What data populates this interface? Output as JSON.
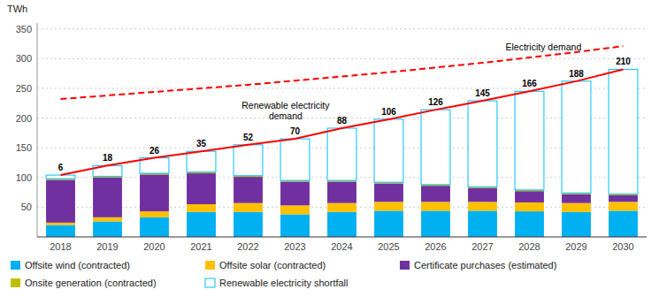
{
  "chart_data": {
    "type": "bar",
    "stacked": true,
    "y_label": "TWh",
    "categories": [
      "2018",
      "2019",
      "2020",
      "2021",
      "2022",
      "2023",
      "2024",
      "2025",
      "2026",
      "2027",
      "2028",
      "2029",
      "2030"
    ],
    "series": [
      {
        "name": "Offsite wind (contracted)",
        "type": "bar",
        "color": "#00B0F0",
        "values": [
          20,
          26,
          33,
          42,
          42,
          38,
          42,
          44,
          44,
          44,
          43,
          42,
          44
        ]
      },
      {
        "name": "Offsite solar (contracted)",
        "type": "bar",
        "color": "#FFC000",
        "values": [
          4,
          7,
          10,
          13,
          15,
          15,
          15,
          15,
          15,
          15,
          15,
          15,
          15
        ]
      },
      {
        "name": "Certificate purchases (estimated)",
        "type": "bar",
        "color": "#7030A0",
        "values": [
          72,
          67,
          62,
          52,
          44,
          40,
          36,
          31,
          27,
          23,
          19,
          15,
          11
        ]
      },
      {
        "name": "Onsite generation (contracted)",
        "type": "bar",
        "color": "#BFBF00",
        "values": [
          2,
          2,
          2,
          2,
          2,
          2,
          2,
          2,
          2,
          2,
          2,
          2,
          2
        ]
      },
      {
        "name": "Renewable electricity shortfall",
        "type": "bar",
        "color": "#00BFFF",
        "line_style": "solid",
        "data_labels": true,
        "values": [
          6,
          18,
          26,
          35,
          52,
          70,
          88,
          106,
          126,
          145,
          166,
          188,
          210
        ]
      },
      {
        "type": "line",
        "color": "#FF0000",
        "line_style": "solid",
        "values": [
          104,
          120,
          133,
          144,
          155,
          165,
          183,
          198,
          214,
          229,
          245,
          262,
          282
        ]
      },
      {
        "type": "line",
        "color": "#FF0000",
        "line_style": "dashed",
        "values": [
          232,
          238,
          244,
          250,
          256,
          263,
          270,
          277,
          285,
          293,
          302,
          311,
          321
        ]
      }
    ],
    "annotations": [
      {
        "text": "Electricity demand"
      },
      {
        "text": "Renewable electricity\ndemand"
      }
    ],
    "ylim": [
      0,
      360
    ],
    "yticks": [
      50,
      100,
      150,
      200,
      250,
      300,
      350
    ],
    "grid": true,
    "legend": "bottom"
  }
}
